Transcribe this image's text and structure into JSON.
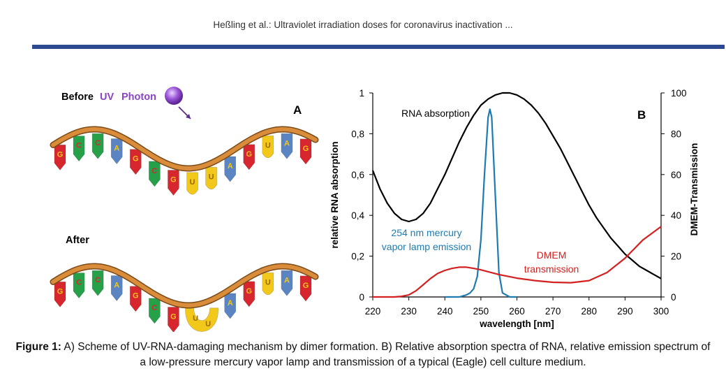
{
  "header": {
    "running_title": "Heßling et al.: Ultraviolet irradiation doses for coronavirus inactivation ..."
  },
  "colors": {
    "rule": "#2b4a8f",
    "rna_curve": "#000000",
    "lamp_curve": "#1f7ab0",
    "dmem_curve": "#d32020",
    "photon": "#8a44c8",
    "backbone": "#d98c3a",
    "base_red": "#d8262e",
    "base_green": "#27a04a",
    "base_blue": "#5b85c2",
    "base_yellow": "#f2c81a"
  },
  "panel_a": {
    "panel_label": "A",
    "before_word": "Before",
    "uv_word": "UV",
    "photon_word": "Photon",
    "after_word": "After",
    "strand_top_bases": [
      "G",
      "C",
      "C",
      "A",
      "G",
      "C",
      "G",
      "U",
      "U",
      "A",
      "G",
      "U",
      "A",
      "G"
    ],
    "strand_bottom_bases": [
      "G",
      "C",
      "C",
      "A",
      "G",
      "C",
      "G",
      "U",
      "U",
      "A",
      "G",
      "U",
      "A",
      "G"
    ]
  },
  "chart_data": {
    "type": "line",
    "panel_label": "B",
    "xlabel": "wavelength [nm]",
    "ylabel_left": "relative RNA absorption",
    "ylabel_right": "DMEM-Transmission",
    "xlim": [
      220,
      300
    ],
    "ylim_left": [
      0,
      1
    ],
    "ylim_right": [
      0,
      100
    ],
    "x_ticks": [
      "220",
      "230",
      "240",
      "250",
      "260",
      "270",
      "280",
      "290",
      "300"
    ],
    "y_left_ticks": [
      "0",
      "0,2",
      "0,4",
      "0,6",
      "0,8",
      "1"
    ],
    "y_right_ticks": [
      "0",
      "20",
      "40",
      "60",
      "80",
      "100"
    ],
    "grid": false,
    "annotations": {
      "rna": "RNA absorption",
      "lamp_line1": "254 nm mercury",
      "lamp_line2": "vapor lamp emission",
      "dmem_line1": "DMEM",
      "dmem_line2": "transmission"
    },
    "series": [
      {
        "axis": "left",
        "color": "#000000",
        "x": [
          220,
          222,
          224,
          226,
          228,
          230,
          232,
          234,
          236,
          238,
          240,
          242,
          244,
          246,
          248,
          250,
          252,
          254,
          256,
          258,
          260,
          262,
          264,
          266,
          268,
          270,
          272,
          274,
          276,
          278,
          280,
          282,
          284,
          286,
          288,
          290,
          292,
          294,
          296,
          298,
          300
        ],
        "values": [
          0.62,
          0.53,
          0.46,
          0.41,
          0.38,
          0.37,
          0.38,
          0.41,
          0.46,
          0.53,
          0.6,
          0.68,
          0.76,
          0.83,
          0.89,
          0.94,
          0.97,
          0.99,
          1.0,
          1.0,
          0.99,
          0.97,
          0.94,
          0.9,
          0.85,
          0.79,
          0.73,
          0.66,
          0.59,
          0.52,
          0.45,
          0.39,
          0.34,
          0.29,
          0.25,
          0.21,
          0.18,
          0.15,
          0.13,
          0.11,
          0.09
        ]
      },
      {
        "axis": "left",
        "color": "#1f7ab0",
        "x": [
          240,
          244,
          246,
          247,
          248,
          249,
          250,
          251,
          252,
          252.5,
          253,
          254,
          255,
          256,
          258,
          260
        ],
        "values": [
          0.0,
          0.0,
          0.01,
          0.02,
          0.04,
          0.1,
          0.28,
          0.6,
          0.88,
          0.92,
          0.88,
          0.5,
          0.12,
          0.02,
          0.0,
          0.0
        ]
      },
      {
        "axis": "right",
        "color": "#d32020",
        "x": [
          220,
          226,
          228,
          230,
          232,
          234,
          236,
          238,
          240,
          242,
          244,
          246,
          248,
          250,
          255,
          260,
          265,
          270,
          275,
          280,
          285,
          290,
          295,
          300
        ],
        "values": [
          0,
          0,
          0.3,
          1,
          3,
          6,
          9,
          11.5,
          13,
          14,
          14.6,
          14.6,
          14,
          13.3,
          11,
          9.2,
          8,
          7.2,
          7,
          8,
          12,
          19,
          28,
          34.5
        ]
      }
    ]
  },
  "figure_caption": {
    "label": "Figure 1:",
    "text": "A) Scheme of UV-RNA-damaging mechanism by dimer formation. B) Relative absorption spectra of RNA, relative emission spectrum of a low-pressure mercury vapor lamp and transmission of a typical (Eagle) cell culture medium."
  }
}
